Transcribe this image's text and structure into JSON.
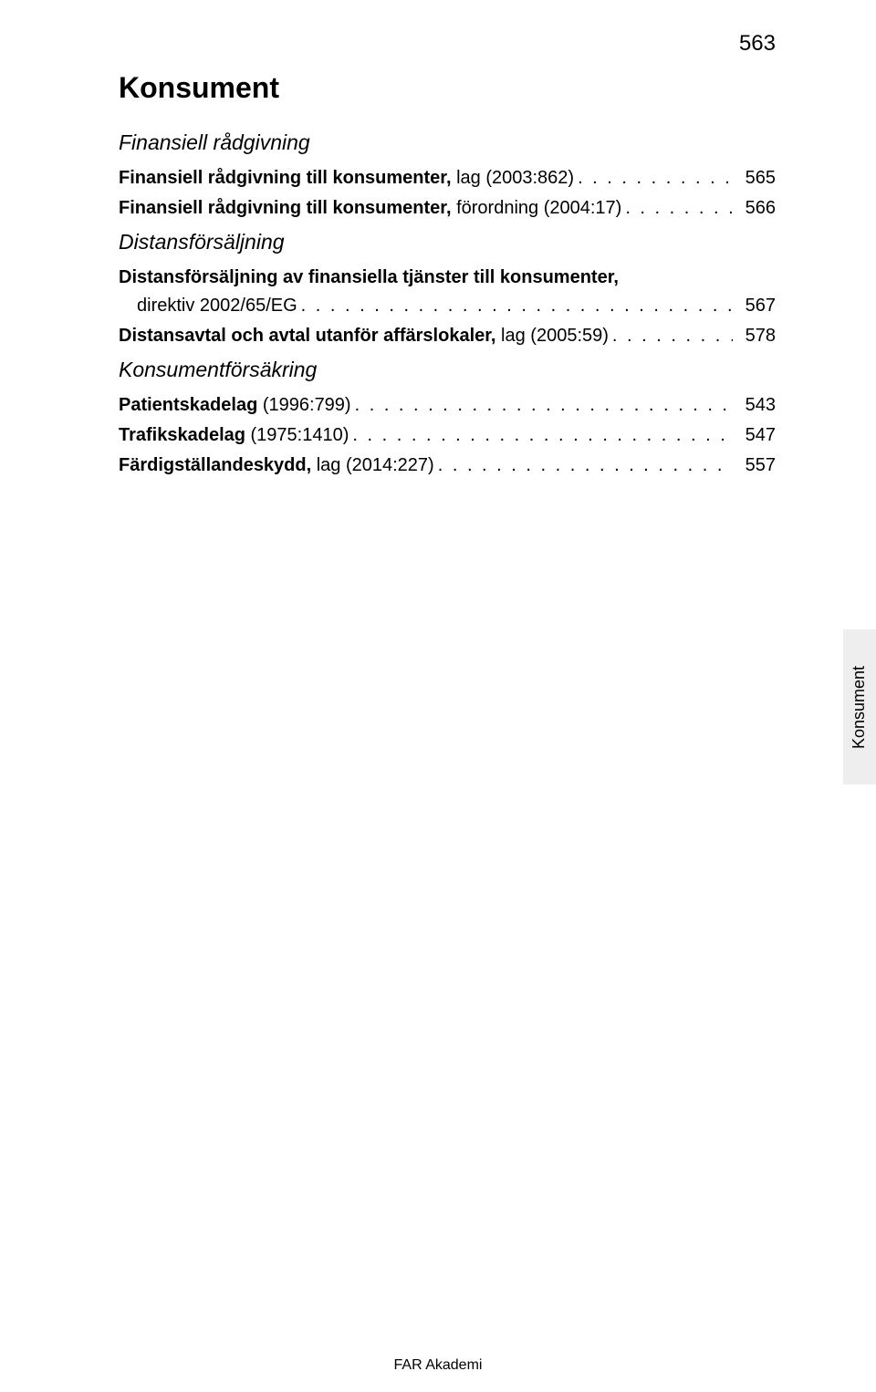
{
  "page_number_top": "563",
  "main_heading": "Konsument",
  "sections": [
    {
      "title": "Finansiell rådgivning",
      "entries": [
        {
          "label_bold": "Finansiell rådgivning till konsumenter,",
          "label_normal": " lag (2003:862)",
          "page": "565",
          "multiline": false
        },
        {
          "label_bold": "Finansiell rådgivning till konsumenter,",
          "label_normal": " förordning (2004:17)",
          "page": "566",
          "multiline": false
        }
      ]
    },
    {
      "title": "Distansförsäljning",
      "entries": [
        {
          "line1_bold": "Distansförsäljning av finansiella tjänster till konsumenter,",
          "label_normal": "direktiv 2002/65/EG",
          "page": "567",
          "multiline": true
        },
        {
          "label_bold": "Distansavtal och avtal utanför affärslokaler,",
          "label_normal": " lag (2005:59)",
          "page": "578",
          "multiline": false
        }
      ]
    },
    {
      "title": "Konsumentförsäkring",
      "entries": [
        {
          "label_bold": "Patientskadelag",
          "label_normal": " (1996:799)",
          "page": "543",
          "multiline": false
        },
        {
          "label_bold": "Trafikskadelag",
          "label_normal": " (1975:1410)",
          "page": "547",
          "multiline": false
        },
        {
          "label_bold": "Färdigställandeskydd,",
          "label_normal": " lag (2014:227)",
          "page": "557",
          "multiline": false
        }
      ]
    }
  ],
  "side_tab_label": "Konsument",
  "footer_text": "FAR Akademi"
}
